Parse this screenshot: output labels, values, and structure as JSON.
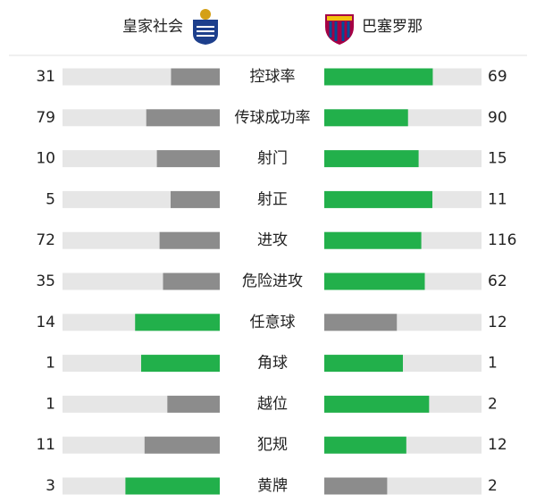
{
  "header": {
    "home": "皇家社会",
    "away": "巴塞罗那"
  },
  "stats": [
    {
      "label": "控球率",
      "home": 31,
      "away": 69
    },
    {
      "label": "传球成功率",
      "home": 79,
      "away": 90
    },
    {
      "label": "射门",
      "home": 10,
      "away": 15
    },
    {
      "label": "射正",
      "home": 5,
      "away": 11
    },
    {
      "label": "进攻",
      "home": 72,
      "away": 116
    },
    {
      "label": "危险进攻",
      "home": 35,
      "away": 62
    },
    {
      "label": "任意球",
      "home": 14,
      "away": 12
    },
    {
      "label": "角球",
      "home": 1,
      "away": 1
    },
    {
      "label": "越位",
      "home": 1,
      "away": 2
    },
    {
      "label": "犯规",
      "home": 11,
      "away": 12
    },
    {
      "label": "黄牌",
      "home": 3,
      "away": 2
    }
  ]
}
